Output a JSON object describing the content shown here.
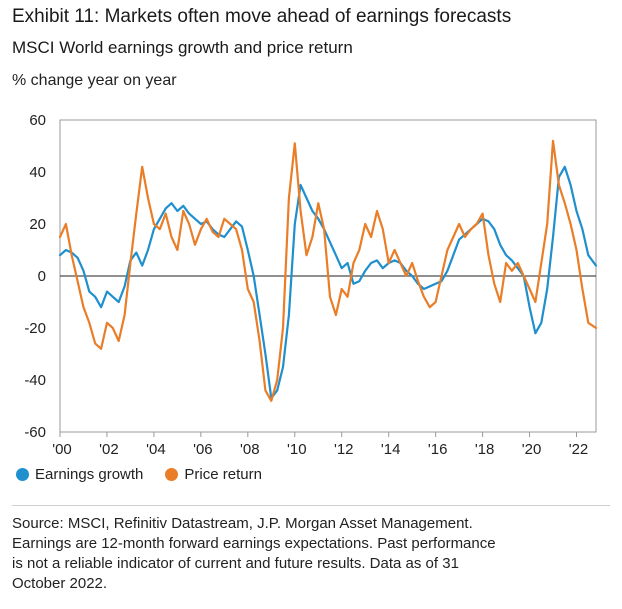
{
  "title": "Exhibit 11: Markets often move ahead of earnings forecasts",
  "subtitle": "MSCI World earnings growth and price return",
  "source_lines": [
    "Source: MSCI, Refinitiv Datastream, J.P. Morgan Asset Management.",
    "Earnings are 12-month forward earnings expectations. Past performance",
    "is not a reliable indicator of current and future results. Data as of 31",
    "October 2022."
  ],
  "chart_data": {
    "type": "line",
    "title": "Exhibit 11: Markets often move ahead of earnings forecasts",
    "subtitle": "MSCI World earnings growth and price return",
    "ylabel": "% change year on year",
    "xlabel": "",
    "ylim": [
      -60,
      60
    ],
    "xlim": [
      2000,
      2022.83
    ],
    "y_ticks": [
      "60",
      "40",
      "20",
      "0",
      "-20",
      "-40",
      "-60"
    ],
    "y_tick_values": [
      60,
      40,
      20,
      0,
      -20,
      -40,
      -60
    ],
    "x_ticks": [
      "'00",
      "'02",
      "'04",
      "'06",
      "'08",
      "'10",
      "'12",
      "'14",
      "'16",
      "'18",
      "'20",
      "'22"
    ],
    "x_tick_values": [
      2000,
      2002,
      2004,
      2006,
      2008,
      2010,
      2012,
      2014,
      2016,
      2018,
      2020,
      2022
    ],
    "grid": false,
    "legend_position": "bottom-left",
    "series": [
      {
        "name": "Earnings growth",
        "color": "#1f8fce",
        "x": [
          2000.0,
          2000.25,
          2000.5,
          2000.75,
          2001.0,
          2001.25,
          2001.5,
          2001.75,
          2002.0,
          2002.25,
          2002.5,
          2002.75,
          2003.0,
          2003.25,
          2003.5,
          2003.75,
          2004.0,
          2004.25,
          2004.5,
          2004.75,
          2005.0,
          2005.25,
          2005.5,
          2005.75,
          2006.0,
          2006.25,
          2006.5,
          2006.75,
          2007.0,
          2007.25,
          2007.5,
          2007.75,
          2008.0,
          2008.25,
          2008.5,
          2008.75,
          2009.0,
          2009.25,
          2009.5,
          2009.75,
          2010.0,
          2010.25,
          2010.5,
          2010.75,
          2011.0,
          2011.25,
          2011.5,
          2011.75,
          2012.0,
          2012.25,
          2012.5,
          2012.75,
          2013.0,
          2013.25,
          2013.5,
          2013.75,
          2014.0,
          2014.25,
          2014.5,
          2014.75,
          2015.0,
          2015.25,
          2015.5,
          2015.75,
          2016.0,
          2016.25,
          2016.5,
          2016.75,
          2017.0,
          2017.25,
          2017.5,
          2017.75,
          2018.0,
          2018.25,
          2018.5,
          2018.75,
          2019.0,
          2019.25,
          2019.5,
          2019.75,
          2020.0,
          2020.25,
          2020.5,
          2020.75,
          2021.0,
          2021.25,
          2021.5,
          2021.75,
          2022.0,
          2022.25,
          2022.5,
          2022.83
        ],
        "values": [
          8,
          10,
          9,
          7,
          2,
          -6,
          -8,
          -12,
          -6,
          -8,
          -10,
          -4,
          6,
          9,
          4,
          10,
          18,
          22,
          26,
          28,
          25,
          27,
          24,
          22,
          20,
          21,
          18,
          16,
          15,
          18,
          21,
          19,
          10,
          0,
          -15,
          -30,
          -47,
          -44,
          -35,
          -15,
          20,
          35,
          30,
          25,
          22,
          18,
          13,
          8,
          3,
          5,
          -3,
          -2,
          2,
          5,
          6,
          3,
          5,
          6,
          5,
          2,
          0,
          -3,
          -5,
          -4,
          -3,
          -2,
          2,
          8,
          14,
          16,
          18,
          20,
          22,
          21,
          18,
          12,
          8,
          6,
          3,
          0,
          -12,
          -22,
          -18,
          -5,
          15,
          38,
          42,
          35,
          25,
          18,
          8,
          4
        ]
      },
      {
        "name": "Price return",
        "color": "#ea7d27",
        "x": [
          2000.0,
          2000.25,
          2000.5,
          2000.75,
          2001.0,
          2001.25,
          2001.5,
          2001.75,
          2002.0,
          2002.25,
          2002.5,
          2002.75,
          2003.0,
          2003.25,
          2003.5,
          2003.75,
          2004.0,
          2004.25,
          2004.5,
          2004.75,
          2005.0,
          2005.25,
          2005.5,
          2005.75,
          2006.0,
          2006.25,
          2006.5,
          2006.75,
          2007.0,
          2007.25,
          2007.5,
          2007.75,
          2008.0,
          2008.25,
          2008.5,
          2008.75,
          2009.0,
          2009.25,
          2009.5,
          2009.75,
          2010.0,
          2010.25,
          2010.5,
          2010.75,
          2011.0,
          2011.25,
          2011.5,
          2011.75,
          2012.0,
          2012.25,
          2012.5,
          2012.75,
          2013.0,
          2013.25,
          2013.5,
          2013.75,
          2014.0,
          2014.25,
          2014.5,
          2014.75,
          2015.0,
          2015.25,
          2015.5,
          2015.75,
          2016.0,
          2016.25,
          2016.5,
          2016.75,
          2017.0,
          2017.25,
          2017.5,
          2017.75,
          2018.0,
          2018.25,
          2018.5,
          2018.75,
          2019.0,
          2019.25,
          2019.5,
          2019.75,
          2020.0,
          2020.25,
          2020.5,
          2020.75,
          2021.0,
          2021.25,
          2021.5,
          2021.75,
          2022.0,
          2022.25,
          2022.5,
          2022.83
        ],
        "values": [
          15,
          20,
          8,
          -2,
          -12,
          -18,
          -26,
          -28,
          -18,
          -20,
          -25,
          -15,
          5,
          24,
          42,
          30,
          20,
          18,
          24,
          15,
          10,
          25,
          20,
          12,
          18,
          22,
          17,
          15,
          22,
          20,
          18,
          10,
          -5,
          -10,
          -25,
          -44,
          -48,
          -40,
          -20,
          30,
          51,
          25,
          8,
          15,
          28,
          18,
          -8,
          -15,
          -5,
          -8,
          5,
          10,
          20,
          15,
          25,
          18,
          5,
          10,
          5,
          0,
          5,
          -2,
          -8,
          -12,
          -10,
          0,
          10,
          15,
          20,
          15,
          18,
          20,
          24,
          8,
          -3,
          -10,
          5,
          2,
          5,
          0,
          -5,
          -10,
          5,
          20,
          52,
          35,
          28,
          20,
          10,
          -5,
          -18,
          -20
        ]
      }
    ]
  }
}
